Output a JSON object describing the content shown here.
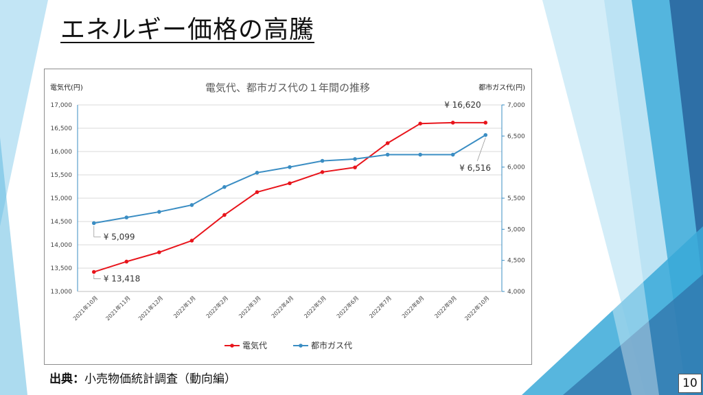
{
  "slide": {
    "title": "エネルギー価格の高騰",
    "source_label": "出典：",
    "source_text": "小売物価統計調査（動向編）",
    "page_number": "10",
    "colors": {
      "background_accent_light": "#8fd0ec",
      "background_accent_mid": "#3aa9d8",
      "background_accent_dark": "#2e6fa6"
    }
  },
  "chart_data": {
    "type": "line",
    "title": "電気代、都市ガス代の１年間の推移",
    "ylabel_left": "電気代(円)",
    "ylabel_right": "都市ガス代(円)",
    "categories": [
      "2021年10月",
      "2021年11月",
      "2021年12月",
      "2022年1月",
      "2022年2月",
      "2022年3月",
      "2022年4月",
      "2022年5月",
      "2022年6月",
      "2022年7月",
      "2022年8月",
      "2022年9月",
      "2022年10月"
    ],
    "ylim_left": [
      13000,
      17000
    ],
    "ylim_right": [
      4000,
      7000
    ],
    "yticks_left": [
      "13,000",
      "13,500",
      "14,000",
      "14,500",
      "15,000",
      "15,500",
      "16,000",
      "16,500",
      "17,000"
    ],
    "yticks_right": [
      "4,000",
      "4,500",
      "5,000",
      "5,500",
      "6,000",
      "6,500",
      "7,000"
    ],
    "grid": true,
    "legend_position": "bottom",
    "series": [
      {
        "name": "電気代",
        "axis": "left",
        "color": "#e8141b",
        "values": [
          13418,
          13640,
          13840,
          14090,
          14640,
          15130,
          15320,
          15560,
          15660,
          16180,
          16600,
          16620,
          16620
        ]
      },
      {
        "name": "都市ガス代",
        "axis": "right",
        "color": "#3a8dc3",
        "values": [
          5099,
          5190,
          5280,
          5390,
          5680,
          5910,
          6000,
          6100,
          6130,
          6200,
          6200,
          6200,
          6516
        ]
      }
    ],
    "annotations": [
      {
        "text": "¥ 13,418",
        "series": 0,
        "index": 0
      },
      {
        "text": "¥ 5,099",
        "series": 1,
        "index": 0
      },
      {
        "text": "¥ 16,620",
        "series": 0,
        "index": 12
      },
      {
        "text": "¥ 6,516",
        "series": 1,
        "index": 12
      }
    ]
  }
}
